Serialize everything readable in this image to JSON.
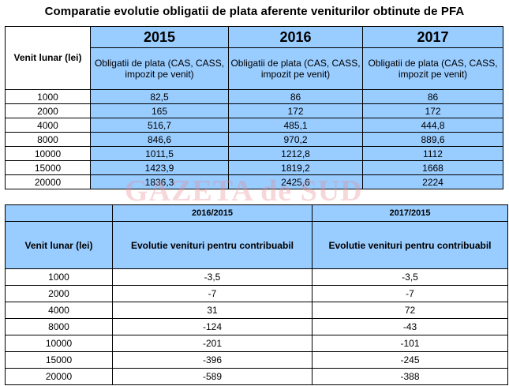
{
  "title": "Comparatie evolutie obligatii de plata aferente veniturilor obtinute de PFA",
  "table1": {
    "row_header": "Venit lunar (lei)",
    "years": [
      "2015",
      "2016",
      "2017"
    ],
    "col_sub": "Obligatii de plata (CAS, CASS, impozit pe venit)",
    "rows": [
      [
        "1000",
        "82,5",
        "86",
        "86"
      ],
      [
        "2000",
        "165",
        "172",
        "172"
      ],
      [
        "4000",
        "516,7",
        "485,1",
        "444,8"
      ],
      [
        "8000",
        "846,6",
        "970,2",
        "889,6"
      ],
      [
        "10000",
        "1011,5",
        "1212,8",
        "1112"
      ],
      [
        "15000",
        "1423,9",
        "1819,2",
        "1668"
      ],
      [
        "20000",
        "1836,3",
        "2425,6",
        "2224"
      ]
    ]
  },
  "table2": {
    "headers": [
      "2016/2015",
      "2017/2015"
    ],
    "row_header": "Venit lunar (lei)",
    "col_sub": "Evolutie venituri pentru contribuabil",
    "rows": [
      [
        "1000",
        "-3,5",
        "-3,5"
      ],
      [
        "2000",
        "-7",
        "-7"
      ],
      [
        "4000",
        "31",
        "72"
      ],
      [
        "8000",
        "-124",
        "-43"
      ],
      [
        "10000",
        "-201",
        "-101"
      ],
      [
        "15000",
        "-396",
        "-245"
      ],
      [
        "20000",
        "-589",
        "-388"
      ]
    ]
  },
  "watermark": "GAZETA de SUD",
  "colors": {
    "header_fill": "#99ccff",
    "watermark": "#e68c96"
  }
}
